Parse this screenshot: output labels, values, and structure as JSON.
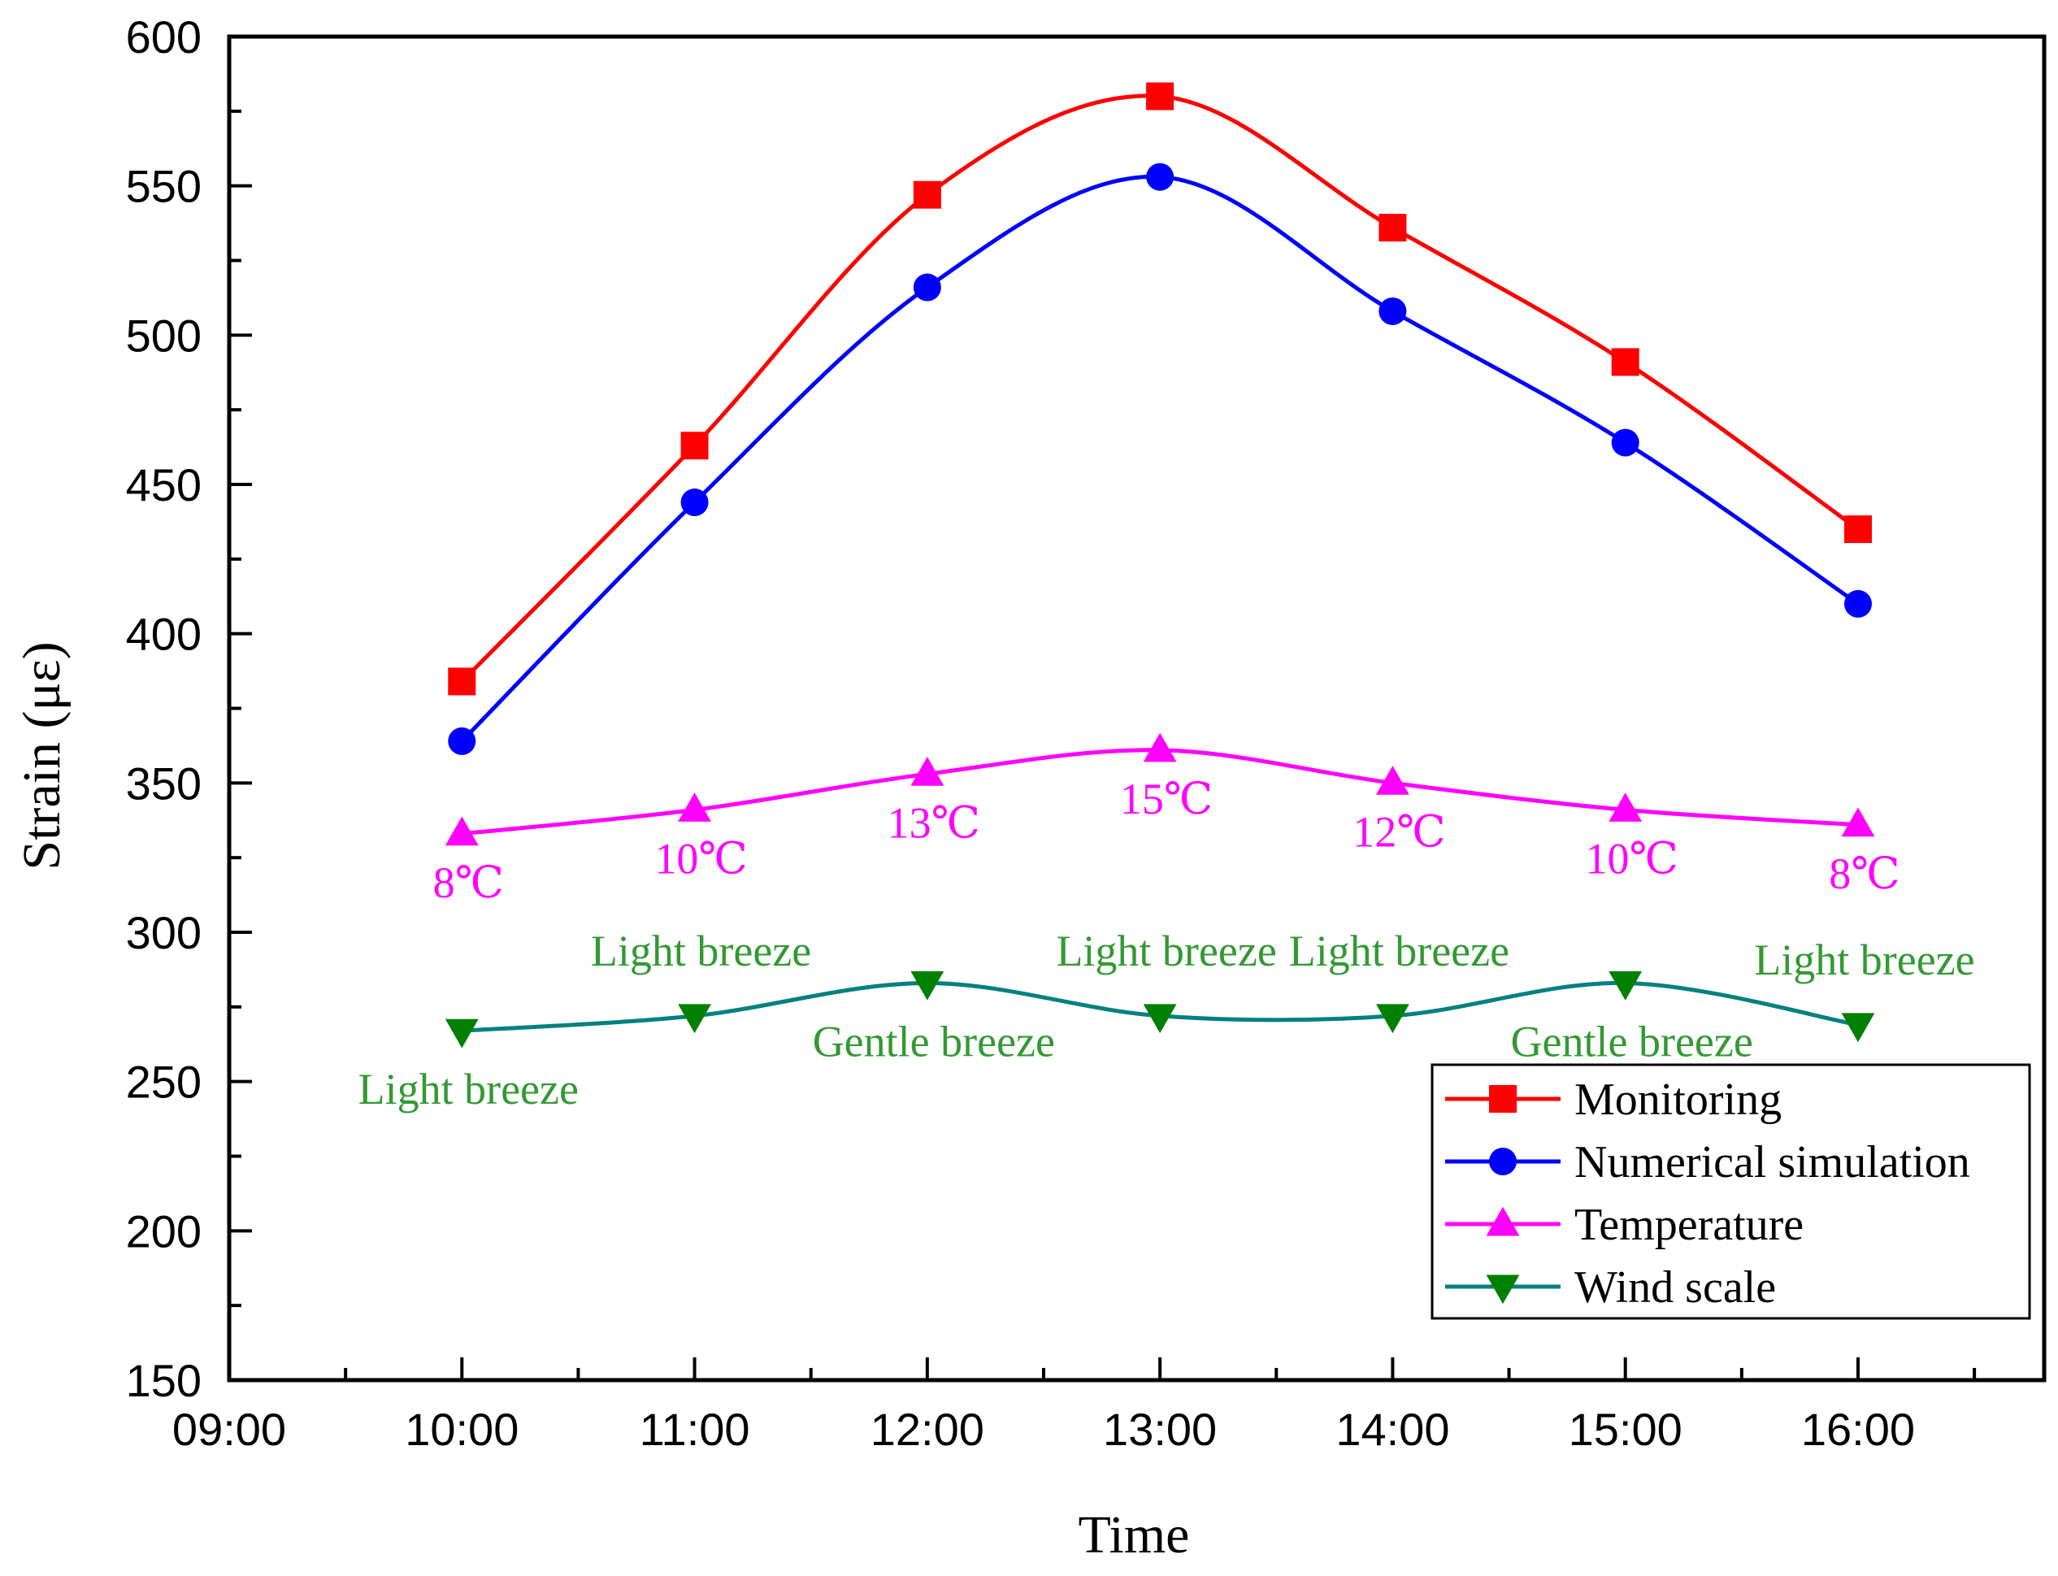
{
  "chart_data": {
    "type": "line",
    "title": "",
    "xlabel": "Time",
    "ylabel": "Strain (με)",
    "x_ticks": [
      "09:00",
      "10:00",
      "11:00",
      "12:00",
      "13:00",
      "14:00",
      "15:00",
      "16:00"
    ],
    "x_range": [
      9,
      16.8
    ],
    "ylim": [
      150,
      600
    ],
    "y_ticks": [
      "150",
      "200",
      "250",
      "300",
      "350",
      "400",
      "450",
      "500",
      "550",
      "600"
    ],
    "grid": false,
    "legend_position": "bottom-right",
    "series": [
      {
        "name": "Monitoring",
        "color": "#ff0000",
        "marker": "square",
        "x": [
          10,
          11,
          12,
          13,
          14,
          15,
          16
        ],
        "values": [
          384,
          463,
          547,
          580,
          536,
          491,
          435
        ]
      },
      {
        "name": "Numerical simulation",
        "color": "#0000ff",
        "marker": "circle",
        "x": [
          10,
          11,
          12,
          13,
          14,
          15,
          16
        ],
        "values": [
          364,
          444,
          516,
          553,
          508,
          464,
          410
        ]
      },
      {
        "name": "Temperature",
        "color": "#ff00ff",
        "marker": "triangle-up",
        "x": [
          10,
          11,
          12,
          13,
          14,
          15,
          16
        ],
        "values": [
          333,
          341,
          353,
          361,
          350,
          341,
          336
        ],
        "labels": [
          "8℃",
          "10℃",
          "13℃",
          "15℃",
          "12℃",
          "10℃",
          "8℃"
        ]
      },
      {
        "name": "Wind scale",
        "color": "#008080",
        "marker_color": "#008000",
        "marker": "triangle-down",
        "x": [
          10,
          11,
          12,
          13,
          14,
          15,
          16
        ],
        "values": [
          267,
          272,
          283,
          272,
          272,
          283,
          269
        ],
        "labels": [
          "Light breeze",
          "Light breeze",
          "Gentle breeze",
          "Light breeze",
          "Light breeze",
          "Gentle breeze",
          "Light breeze"
        ],
        "label_color": "#339933"
      }
    ]
  }
}
